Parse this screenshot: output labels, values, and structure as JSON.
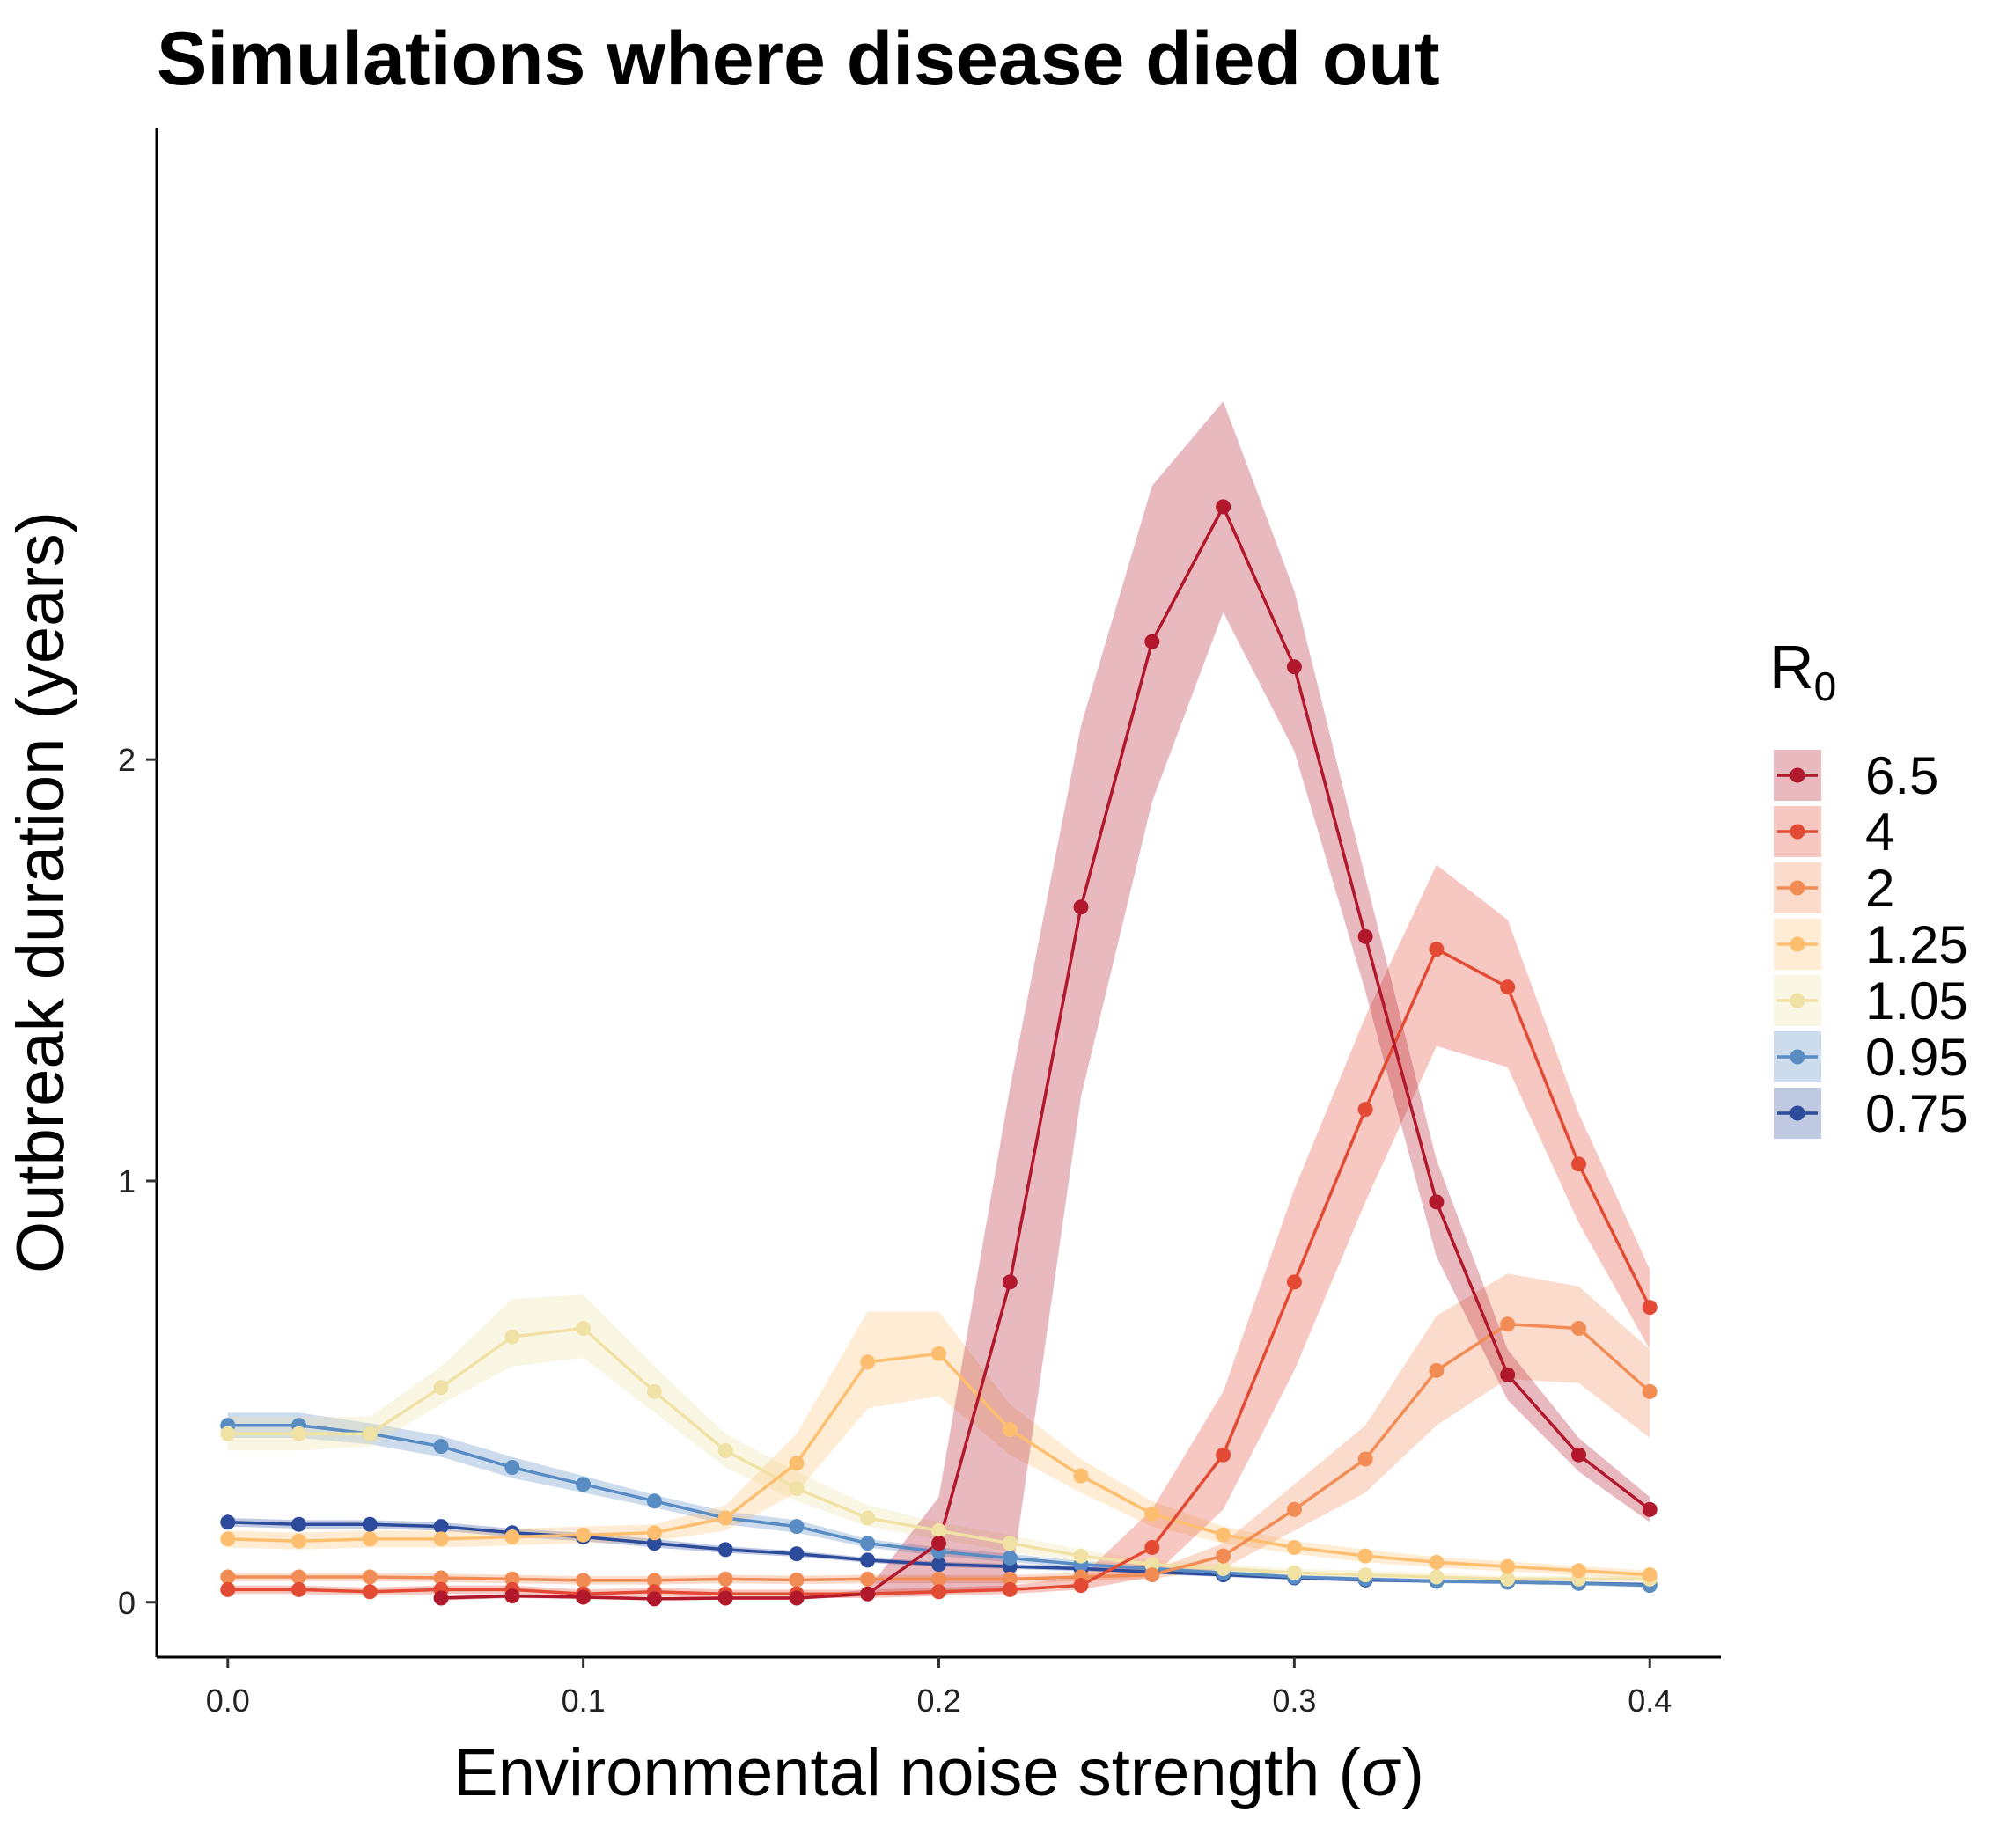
{
  "chart_data": {
    "type": "line",
    "title": "Simulations where disease died out",
    "xlabel": "Environmental noise strength (σ)",
    "ylabel": "Outbreak duration (years)",
    "xlim": [
      -0.02,
      0.42
    ],
    "ylim": [
      -0.13,
      3.5
    ],
    "x_ticks": [
      0.0,
      0.1,
      0.2,
      0.3,
      0.4
    ],
    "x_tick_labels": [
      "0.0",
      "0.1",
      "0.2",
      "0.3",
      "0.4"
    ],
    "y_ticks": [
      0,
      1,
      2
    ],
    "y_tick_labels": [
      "0",
      "1",
      "2"
    ],
    "grid": false,
    "legend": {
      "title": "R",
      "title_subscript": "0",
      "position": "right"
    },
    "series": [
      {
        "name": "6.5",
        "color": "#B2182B",
        "x": [
          0.06,
          0.08,
          0.1,
          0.12,
          0.14,
          0.16,
          0.18,
          0.2,
          0.22,
          0.24,
          0.26,
          0.28,
          0.3,
          0.32,
          0.34,
          0.36,
          0.38,
          0.4
        ],
        "y": [
          0.01,
          0.015,
          0.012,
          0.008,
          0.01,
          0.01,
          0.02,
          0.14,
          0.76,
          1.65,
          2.28,
          2.6,
          2.22,
          1.58,
          0.95,
          0.54,
          0.35,
          0.22
        ],
        "lower": [
          0.005,
          0.01,
          0.008,
          0.005,
          0.006,
          0.006,
          0.015,
          0.02,
          0.03,
          1.2,
          1.9,
          2.35,
          2.02,
          1.45,
          0.82,
          0.48,
          0.31,
          0.19
        ],
        "upper": [
          0.015,
          0.02,
          0.016,
          0.012,
          0.014,
          0.014,
          0.03,
          0.25,
          1.22,
          2.08,
          2.65,
          2.85,
          2.4,
          1.72,
          1.05,
          0.6,
          0.39,
          0.25
        ]
      },
      {
        "name": "4",
        "color": "#E34A33",
        "x": [
          0.0,
          0.02,
          0.04,
          0.06,
          0.08,
          0.1,
          0.12,
          0.14,
          0.16,
          0.18,
          0.2,
          0.22,
          0.24,
          0.26,
          0.28,
          0.3,
          0.32,
          0.34,
          0.36,
          0.38,
          0.4
        ],
        "y": [
          0.03,
          0.03,
          0.025,
          0.03,
          0.03,
          0.02,
          0.025,
          0.02,
          0.02,
          0.02,
          0.025,
          0.03,
          0.04,
          0.13,
          0.35,
          0.76,
          1.17,
          1.55,
          1.46,
          1.04,
          0.7
        ],
        "lower": [
          0.02,
          0.02,
          0.015,
          0.02,
          0.02,
          0.01,
          0.015,
          0.01,
          0.01,
          0.01,
          0.015,
          0.02,
          0.03,
          0.06,
          0.22,
          0.55,
          0.95,
          1.32,
          1.27,
          0.9,
          0.6
        ],
        "upper": [
          0.04,
          0.04,
          0.035,
          0.04,
          0.04,
          0.03,
          0.035,
          0.03,
          0.03,
          0.03,
          0.035,
          0.04,
          0.06,
          0.22,
          0.5,
          0.98,
          1.39,
          1.75,
          1.62,
          1.16,
          0.79
        ]
      },
      {
        "name": "2",
        "color": "#F28C55",
        "x": [
          0.0,
          0.02,
          0.04,
          0.06,
          0.08,
          0.1,
          0.12,
          0.14,
          0.16,
          0.18,
          0.2,
          0.22,
          0.24,
          0.26,
          0.28,
          0.3,
          0.32,
          0.34,
          0.36,
          0.38,
          0.4
        ],
        "y": [
          0.06,
          0.06,
          0.06,
          0.058,
          0.055,
          0.052,
          0.052,
          0.055,
          0.053,
          0.055,
          0.055,
          0.055,
          0.06,
          0.065,
          0.11,
          0.22,
          0.34,
          0.55,
          0.66,
          0.65,
          0.5
        ],
        "lower": [
          0.05,
          0.05,
          0.05,
          0.048,
          0.045,
          0.042,
          0.042,
          0.045,
          0.043,
          0.045,
          0.045,
          0.045,
          0.05,
          0.055,
          0.08,
          0.17,
          0.26,
          0.42,
          0.53,
          0.52,
          0.39
        ],
        "upper": [
          0.07,
          0.07,
          0.07,
          0.068,
          0.065,
          0.062,
          0.062,
          0.065,
          0.063,
          0.065,
          0.065,
          0.065,
          0.07,
          0.075,
          0.14,
          0.28,
          0.42,
          0.68,
          0.78,
          0.75,
          0.6
        ]
      },
      {
        "name": "1.25",
        "color": "#FDBF6F",
        "x": [
          0.0,
          0.02,
          0.04,
          0.06,
          0.08,
          0.1,
          0.12,
          0.14,
          0.16,
          0.18,
          0.2,
          0.22,
          0.24,
          0.26,
          0.28,
          0.3,
          0.32,
          0.34,
          0.36,
          0.38,
          0.4
        ],
        "y": [
          0.15,
          0.145,
          0.15,
          0.15,
          0.155,
          0.16,
          0.165,
          0.2,
          0.33,
          0.57,
          0.59,
          0.41,
          0.3,
          0.21,
          0.16,
          0.13,
          0.11,
          0.095,
          0.085,
          0.075,
          0.065
        ],
        "lower": [
          0.13,
          0.125,
          0.13,
          0.13,
          0.135,
          0.14,
          0.145,
          0.17,
          0.26,
          0.46,
          0.49,
          0.35,
          0.26,
          0.18,
          0.14,
          0.115,
          0.095,
          0.083,
          0.073,
          0.064,
          0.055
        ],
        "upper": [
          0.17,
          0.165,
          0.17,
          0.17,
          0.175,
          0.18,
          0.185,
          0.23,
          0.4,
          0.69,
          0.69,
          0.47,
          0.34,
          0.24,
          0.18,
          0.145,
          0.125,
          0.107,
          0.097,
          0.086,
          0.075
        ]
      },
      {
        "name": "1.05",
        "color": "#F0E2A5",
        "x": [
          0.0,
          0.02,
          0.04,
          0.06,
          0.08,
          0.1,
          0.12,
          0.14,
          0.16,
          0.18,
          0.2,
          0.22,
          0.24,
          0.26,
          0.28,
          0.3,
          0.32,
          0.34,
          0.36,
          0.38,
          0.4
        ],
        "y": [
          0.4,
          0.4,
          0.4,
          0.51,
          0.63,
          0.65,
          0.5,
          0.36,
          0.27,
          0.2,
          0.17,
          0.14,
          0.11,
          0.09,
          0.08,
          0.07,
          0.065,
          0.06,
          0.055,
          0.055,
          0.055
        ],
        "lower": [
          0.36,
          0.36,
          0.37,
          0.47,
          0.56,
          0.58,
          0.45,
          0.32,
          0.24,
          0.18,
          0.15,
          0.12,
          0.095,
          0.078,
          0.07,
          0.06,
          0.055,
          0.05,
          0.047,
          0.047,
          0.047
        ],
        "upper": [
          0.44,
          0.44,
          0.44,
          0.56,
          0.72,
          0.73,
          0.56,
          0.4,
          0.31,
          0.23,
          0.19,
          0.16,
          0.125,
          0.1,
          0.09,
          0.08,
          0.075,
          0.07,
          0.063,
          0.063,
          0.063
        ]
      },
      {
        "name": "0.95",
        "color": "#5A8CC4",
        "x": [
          0.0,
          0.02,
          0.04,
          0.06,
          0.08,
          0.1,
          0.12,
          0.14,
          0.16,
          0.18,
          0.2,
          0.22,
          0.24,
          0.26,
          0.28,
          0.3,
          0.32,
          0.34,
          0.36,
          0.38,
          0.4
        ],
        "y": [
          0.42,
          0.42,
          0.4,
          0.37,
          0.32,
          0.28,
          0.24,
          0.2,
          0.18,
          0.14,
          0.12,
          0.105,
          0.09,
          0.08,
          0.07,
          0.06,
          0.055,
          0.05,
          0.048,
          0.045,
          0.04
        ],
        "lower": [
          0.39,
          0.39,
          0.375,
          0.345,
          0.295,
          0.26,
          0.225,
          0.185,
          0.165,
          0.13,
          0.11,
          0.095,
          0.082,
          0.073,
          0.064,
          0.055,
          0.05,
          0.045,
          0.043,
          0.04,
          0.035
        ],
        "upper": [
          0.45,
          0.45,
          0.425,
          0.395,
          0.345,
          0.3,
          0.255,
          0.215,
          0.195,
          0.15,
          0.13,
          0.115,
          0.098,
          0.087,
          0.076,
          0.065,
          0.06,
          0.055,
          0.053,
          0.05,
          0.045
        ]
      },
      {
        "name": "0.75",
        "color": "#2C4B9B",
        "x": [
          0.0,
          0.02,
          0.04,
          0.06,
          0.08,
          0.1,
          0.12,
          0.14,
          0.16,
          0.18,
          0.2,
          0.22,
          0.24,
          0.26,
          0.28,
          0.3,
          0.32,
          0.34,
          0.36,
          0.38,
          0.4
        ],
        "y": [
          0.19,
          0.185,
          0.185,
          0.18,
          0.165,
          0.155,
          0.14,
          0.125,
          0.115,
          0.1,
          0.09,
          0.085,
          0.08,
          0.072,
          0.065,
          0.058,
          0.053,
          0.05,
          0.048,
          0.045,
          0.042
        ],
        "lower": [
          0.18,
          0.175,
          0.175,
          0.17,
          0.155,
          0.145,
          0.13,
          0.117,
          0.108,
          0.094,
          0.084,
          0.079,
          0.074,
          0.067,
          0.06,
          0.053,
          0.048,
          0.046,
          0.044,
          0.041,
          0.038
        ],
        "upper": [
          0.2,
          0.195,
          0.195,
          0.19,
          0.175,
          0.165,
          0.15,
          0.133,
          0.122,
          0.106,
          0.096,
          0.091,
          0.086,
          0.077,
          0.07,
          0.063,
          0.058,
          0.054,
          0.052,
          0.049,
          0.046
        ]
      }
    ]
  }
}
